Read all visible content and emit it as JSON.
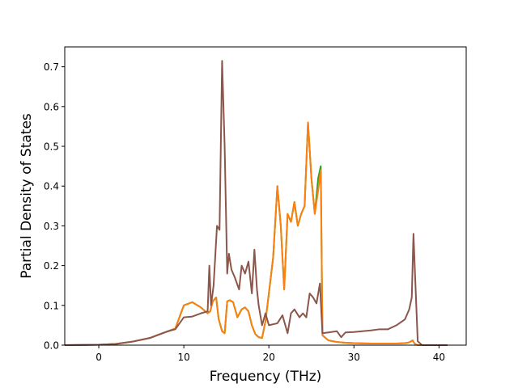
{
  "chart_data": {
    "type": "line",
    "xlabel": "Frequency (THz)",
    "ylabel": "Partial Density of States",
    "xlim": [
      -4,
      43.2
    ],
    "ylim": [
      0,
      0.75
    ],
    "xticks": [
      0,
      10,
      20,
      30,
      40
    ],
    "yticks": [
      0.0,
      0.1,
      0.2,
      0.3,
      0.4,
      0.5,
      0.6,
      0.7
    ],
    "xtick_labels": [
      "0",
      "10",
      "20",
      "30",
      "40"
    ],
    "ytick_labels": [
      "0.0",
      "0.1",
      "0.2",
      "0.3",
      "0.4",
      "0.5",
      "0.6",
      "0.7"
    ],
    "grid": false,
    "legend": "none",
    "series": [
      {
        "color": "#2ca02c",
        "x": [
          -4,
          0,
          2,
          4,
          6,
          7,
          8,
          9,
          10,
          11,
          12,
          12.8,
          13.1,
          13.4,
          13.8,
          14.1,
          14.5,
          14.8,
          15.1,
          15.4,
          15.8,
          16.3,
          16.8,
          17.2,
          17.6,
          18.0,
          18.4,
          18.8,
          19.2,
          19.6,
          20.0,
          20.5,
          21.0,
          21.4,
          21.8,
          22.2,
          22.6,
          23.0,
          23.4,
          23.8,
          24.2,
          24.6,
          25.0,
          25.4,
          25.8,
          26.1,
          26.3,
          27,
          28,
          29,
          30,
          32,
          34,
          35,
          36,
          36.5,
          36.9,
          37.1,
          37.3,
          37.6,
          38,
          41
        ],
        "y": [
          0,
          0.001,
          0.003,
          0.009,
          0.018,
          0.026,
          0.034,
          0.042,
          0.1,
          0.108,
          0.095,
          0.08,
          0.085,
          0.11,
          0.12,
          0.065,
          0.035,
          0.03,
          0.11,
          0.113,
          0.108,
          0.07,
          0.09,
          0.095,
          0.085,
          0.05,
          0.028,
          0.02,
          0.018,
          0.06,
          0.13,
          0.22,
          0.4,
          0.3,
          0.14,
          0.33,
          0.31,
          0.36,
          0.3,
          0.33,
          0.35,
          0.56,
          0.42,
          0.33,
          0.42,
          0.45,
          0.025,
          0.012,
          0.008,
          0.006,
          0.005,
          0.004,
          0.004,
          0.004,
          0.005,
          0.007,
          0.012,
          0.005,
          0.001,
          0,
          0,
          0
        ]
      },
      {
        "color": "#ff7f0e",
        "x": [
          -4,
          0,
          2,
          4,
          6,
          7,
          8,
          9,
          10,
          11,
          12,
          12.8,
          13.1,
          13.4,
          13.8,
          14.1,
          14.5,
          14.8,
          15.1,
          15.4,
          15.8,
          16.3,
          16.8,
          17.2,
          17.6,
          18.0,
          18.4,
          18.8,
          19.2,
          19.6,
          20.0,
          20.5,
          21.0,
          21.4,
          21.8,
          22.2,
          22.6,
          23.0,
          23.4,
          23.8,
          24.2,
          24.6,
          25.0,
          25.4,
          25.8,
          26.1,
          26.3,
          27,
          28,
          29,
          30,
          32,
          34,
          35,
          36,
          36.5,
          36.9,
          37.1,
          37.3,
          37.6,
          38,
          41
        ],
        "y": [
          0,
          0.001,
          0.003,
          0.009,
          0.018,
          0.026,
          0.034,
          0.042,
          0.1,
          0.108,
          0.095,
          0.08,
          0.085,
          0.11,
          0.12,
          0.065,
          0.035,
          0.03,
          0.11,
          0.113,
          0.108,
          0.07,
          0.09,
          0.095,
          0.085,
          0.05,
          0.028,
          0.02,
          0.018,
          0.06,
          0.13,
          0.22,
          0.4,
          0.3,
          0.14,
          0.33,
          0.31,
          0.36,
          0.3,
          0.33,
          0.35,
          0.56,
          0.42,
          0.33,
          0.39,
          0.44,
          0.025,
          0.012,
          0.008,
          0.006,
          0.005,
          0.004,
          0.004,
          0.004,
          0.005,
          0.007,
          0.012,
          0.005,
          0.001,
          0,
          0,
          0
        ]
      },
      {
        "color": "#8c564b",
        "x": [
          -4,
          0,
          2,
          4,
          6,
          7,
          8,
          9,
          10,
          11,
          12,
          12.8,
          13.0,
          13.2,
          13.5,
          13.9,
          14.2,
          14.5,
          14.8,
          15.1,
          15.3,
          15.6,
          16.0,
          16.5,
          16.8,
          17.2,
          17.6,
          18.0,
          18.3,
          18.6,
          18.8,
          19.2,
          19.6,
          20.0,
          21.0,
          21.6,
          22.2,
          22.6,
          23.0,
          23.6,
          24.0,
          24.4,
          24.8,
          25.2,
          25.6,
          26.0,
          26.3,
          27,
          28,
          28.5,
          29,
          30,
          31,
          32,
          33,
          34,
          35,
          36,
          36.5,
          36.8,
          37.0,
          37.2,
          37.5,
          38,
          41
        ],
        "y": [
          0,
          0.001,
          0.003,
          0.009,
          0.018,
          0.026,
          0.034,
          0.04,
          0.07,
          0.072,
          0.08,
          0.085,
          0.2,
          0.1,
          0.15,
          0.3,
          0.29,
          0.715,
          0.5,
          0.18,
          0.23,
          0.19,
          0.17,
          0.14,
          0.2,
          0.18,
          0.21,
          0.13,
          0.24,
          0.14,
          0.1,
          0.05,
          0.08,
          0.05,
          0.055,
          0.075,
          0.03,
          0.08,
          0.09,
          0.07,
          0.08,
          0.07,
          0.13,
          0.12,
          0.105,
          0.155,
          0.03,
          0.032,
          0.035,
          0.02,
          0.032,
          0.033,
          0.035,
          0.037,
          0.04,
          0.04,
          0.05,
          0.065,
          0.09,
          0.12,
          0.28,
          0.17,
          0.01,
          0,
          0
        ]
      }
    ]
  }
}
